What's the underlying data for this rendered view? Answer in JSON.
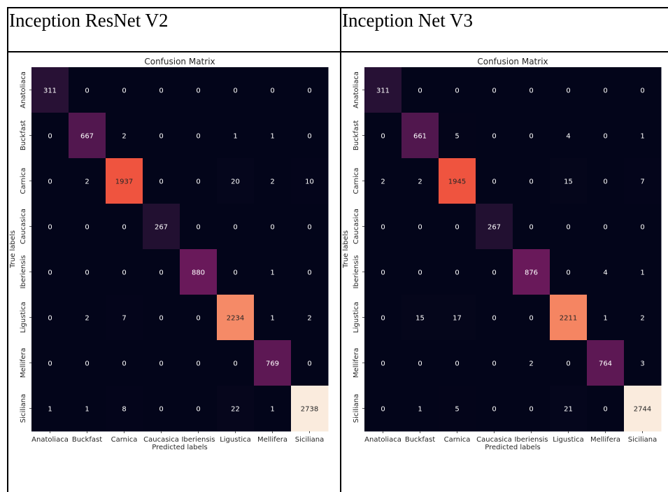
{
  "columns": [
    {
      "title": "Inception ResNet V2"
    },
    {
      "title": "Inception Net V3"
    }
  ],
  "chart_data": [
    {
      "type": "heatmap",
      "title": "Confusion Matrix",
      "xlabel": "Predicted labels",
      "ylabel": "True labels",
      "x_categories": [
        "Anatoliaca",
        "Buckfast",
        "Carnica",
        "Caucasica",
        "Iberiensis",
        "Ligustica",
        "Mellifera",
        "Siciliana"
      ],
      "y_categories": [
        "Anatoliaca",
        "Buckfast",
        "Carnica",
        "Caucasica",
        "Iberiensis",
        "Ligustica",
        "Mellifera",
        "Siciliana"
      ],
      "colormap": "rocket",
      "values": [
        [
          311,
          0,
          0,
          0,
          0,
          0,
          0,
          0
        ],
        [
          0,
          667,
          2,
          0,
          0,
          1,
          1,
          0
        ],
        [
          0,
          2,
          1937,
          0,
          0,
          20,
          2,
          10
        ],
        [
          0,
          0,
          0,
          267,
          0,
          0,
          0,
          0
        ],
        [
          0,
          0,
          0,
          0,
          880,
          0,
          1,
          0
        ],
        [
          0,
          2,
          7,
          0,
          0,
          2234,
          1,
          2
        ],
        [
          0,
          0,
          0,
          0,
          0,
          0,
          769,
          0
        ],
        [
          1,
          1,
          8,
          0,
          0,
          22,
          1,
          2738
        ]
      ]
    },
    {
      "type": "heatmap",
      "title": "Confusion Matrix",
      "xlabel": "Predicted labels",
      "ylabel": "True labels",
      "x_categories": [
        "Anatoliaca",
        "Buckfast",
        "Carnica",
        "Caucasica",
        "Iberiensis",
        "Ligustica",
        "Mellifera",
        "Siciliana"
      ],
      "y_categories": [
        "Anatoliaca",
        "Buckfast",
        "Carnica",
        "Caucasica",
        "Iberiensis",
        "Ligustica",
        "Mellifera",
        "Siciliana"
      ],
      "colormap": "rocket",
      "values": [
        [
          311,
          0,
          0,
          0,
          0,
          0,
          0,
          0
        ],
        [
          0,
          661,
          5,
          0,
          0,
          4,
          0,
          1
        ],
        [
          2,
          2,
          1945,
          0,
          0,
          15,
          0,
          7
        ],
        [
          0,
          0,
          0,
          267,
          0,
          0,
          0,
          0
        ],
        [
          0,
          0,
          0,
          0,
          876,
          0,
          4,
          1
        ],
        [
          0,
          15,
          17,
          0,
          0,
          2211,
          1,
          2
        ],
        [
          0,
          0,
          0,
          0,
          2,
          0,
          764,
          3
        ],
        [
          0,
          1,
          5,
          0,
          0,
          21,
          0,
          2744
        ]
      ]
    }
  ]
}
